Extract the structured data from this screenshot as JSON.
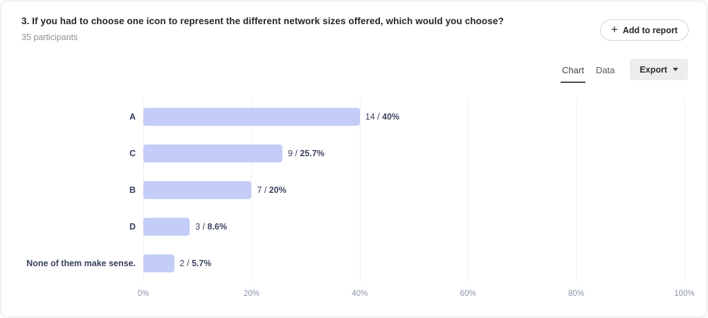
{
  "header": {
    "title": "3. If you had to choose one icon to represent the different network sizes offered, which would you choose?",
    "subtitle": "35 participants",
    "add_to_report_label": "Add to report",
    "plus_icon": "+"
  },
  "toolbar": {
    "tabs": [
      {
        "label": "Chart",
        "active": true
      },
      {
        "label": "Data",
        "active": false
      }
    ],
    "export_label": "Export"
  },
  "chart_data": {
    "type": "bar",
    "orientation": "horizontal",
    "title": "3. If you had to choose one icon to represent the different network sizes offered, which would you choose?",
    "participants": 35,
    "categories": [
      "A",
      "C",
      "B",
      "D",
      "None of them make sense."
    ],
    "values": [
      14,
      9,
      7,
      3,
      2
    ],
    "percentages": [
      40,
      25.7,
      20,
      8.6,
      5.7
    ],
    "rows": [
      {
        "label": "A",
        "count_label": "14 / ",
        "pct_label": "40%",
        "pct": 40
      },
      {
        "label": "C",
        "count_label": "9 / ",
        "pct_label": "25.7%",
        "pct": 25.7
      },
      {
        "label": "B",
        "count_label": "7 / ",
        "pct_label": "20%",
        "pct": 20
      },
      {
        "label": "D",
        "count_label": "3 / ",
        "pct_label": "8.6%",
        "pct": 8.6
      },
      {
        "label": "None of them make sense.",
        "count_label": "2 / ",
        "pct_label": "5.7%",
        "pct": 5.7
      }
    ],
    "x_ticks": [
      "0%",
      "20%",
      "40%",
      "60%",
      "80%",
      "100%"
    ],
    "xlim": [
      0,
      100
    ],
    "grid": true,
    "legend": false,
    "bar_color": "#c3cdf8"
  }
}
